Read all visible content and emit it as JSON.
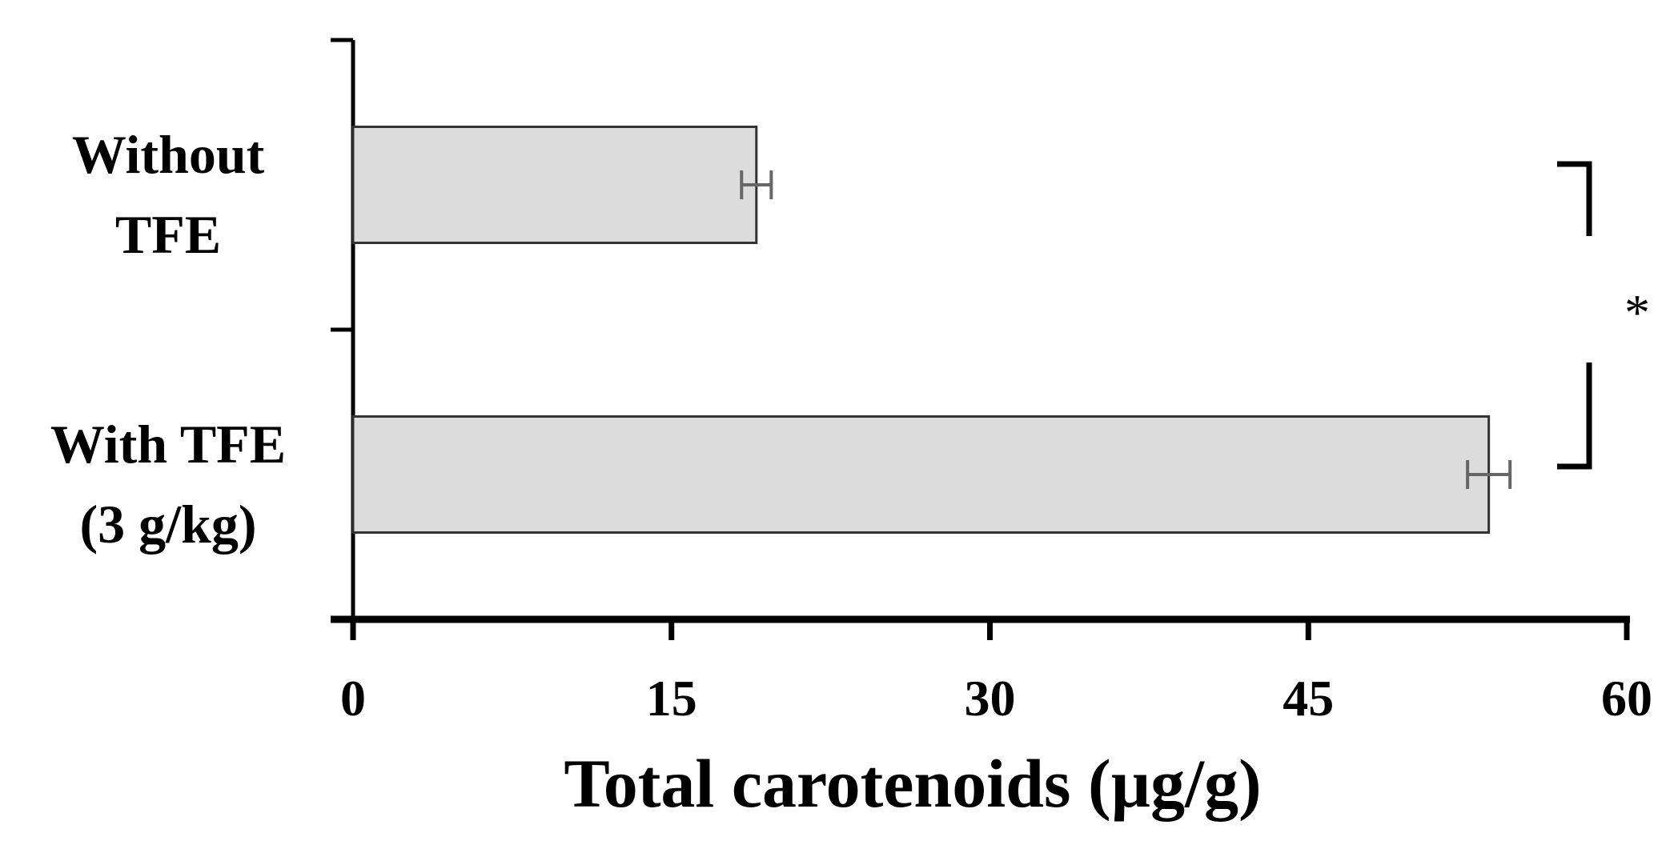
{
  "chart_data": {
    "type": "bar",
    "orientation": "horizontal",
    "categories": [
      [
        "Without",
        "TFE"
      ],
      [
        "With TFE",
        "(3 g/kg)"
      ]
    ],
    "values": [
      19,
      53.5
    ],
    "errors": [
      0.7,
      1.0
    ],
    "xlabel": "Total carotenoids (µg/g)",
    "ylabel": "",
    "xlim": [
      0,
      60
    ],
    "xticks": [
      "0",
      "15",
      "30",
      "45",
      "60"
    ],
    "grid": false,
    "bar_color": "#dcdcdc",
    "bar_edge_color": "#333333",
    "error_color": "#666666",
    "significance": {
      "label": "*",
      "between": [
        0,
        1
      ]
    }
  }
}
